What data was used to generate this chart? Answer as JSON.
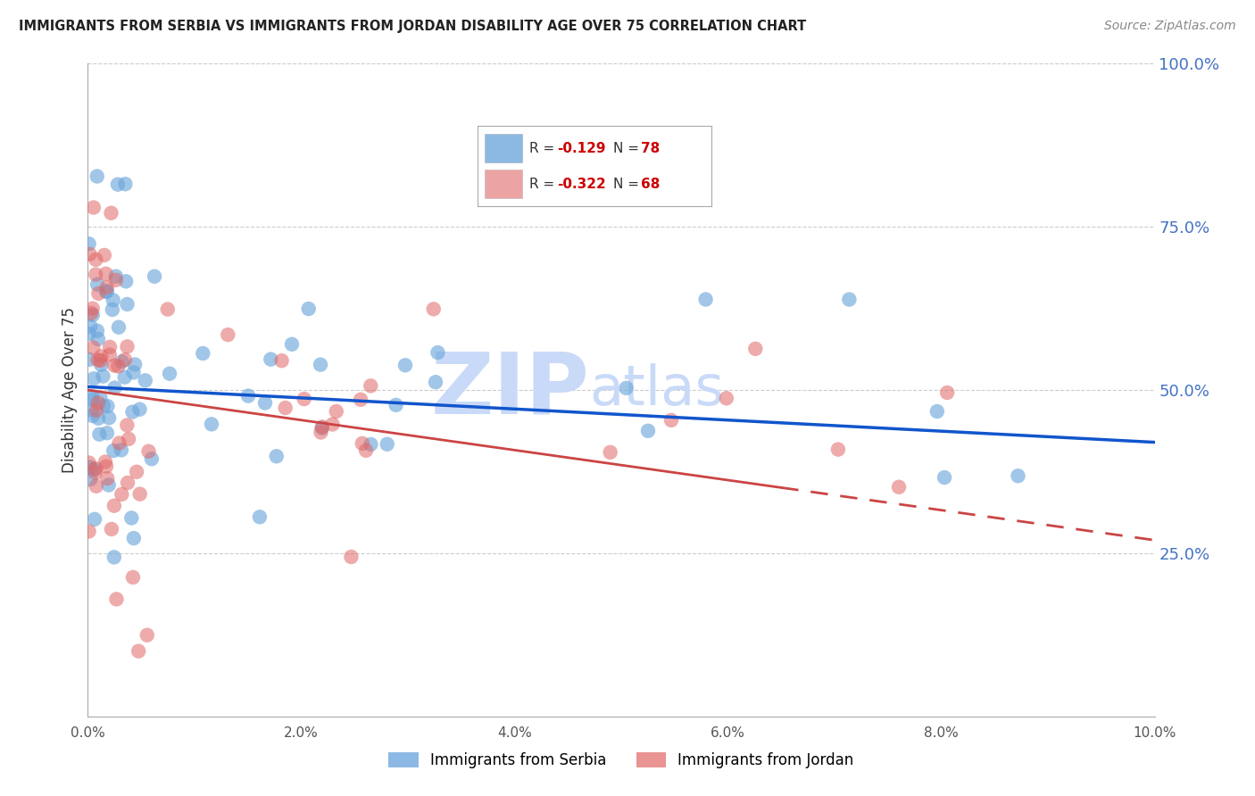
{
  "title": "IMMIGRANTS FROM SERBIA VS IMMIGRANTS FROM JORDAN DISABILITY AGE OVER 75 CORRELATION CHART",
  "source": "Source: ZipAtlas.com",
  "ylabel": "Disability Age Over 75",
  "xlim": [
    0.0,
    10.0
  ],
  "ylim": [
    0.0,
    100.0
  ],
  "right_yticks": [
    25.0,
    50.0,
    75.0,
    100.0
  ],
  "serbia_R": -0.129,
  "serbia_N": 78,
  "jordan_R": -0.322,
  "jordan_N": 68,
  "serbia_color": "#6fa8dc",
  "jordan_color": "#e06666",
  "serbia_line_color": "#1155cc",
  "jordan_line_color": "#cc4444",
  "legend_label_serbia": "Immigrants from Serbia",
  "legend_label_jordan": "Immigrants from Jordan",
  "watermark_zip": "ZIP",
  "watermark_atlas": "atlas",
  "watermark_color": "#c9daf8",
  "background_color": "#ffffff",
  "serbia_intercept": 50.5,
  "serbia_slope": -0.85,
  "jordan_intercept": 50.0,
  "jordan_slope": -2.3
}
